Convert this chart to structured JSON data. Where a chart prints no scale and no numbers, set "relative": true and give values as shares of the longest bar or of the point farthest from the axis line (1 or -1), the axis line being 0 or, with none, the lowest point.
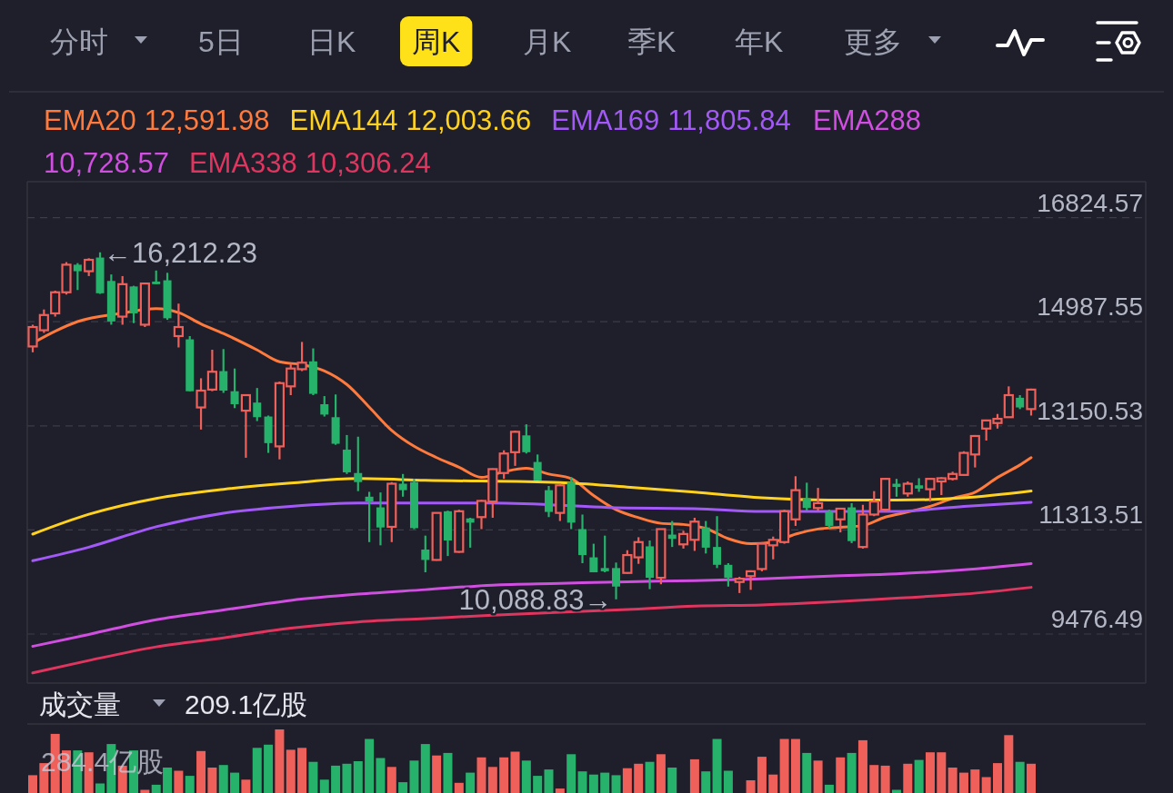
{
  "chart_data": [
    {
      "type": "other",
      "annotations": [
        "分时",
        "5日",
        "日K",
        "周K",
        "月K",
        "季K",
        "年K",
        "更多"
      ]
    },
    {
      "type": "candlestick",
      "categories": [
        null,
        null,
        null,
        null,
        null,
        null,
        null,
        null,
        null,
        null,
        null,
        null,
        null,
        null,
        null,
        null,
        null,
        null,
        null,
        null,
        null,
        null,
        null,
        null,
        null,
        null,
        null,
        null,
        null,
        null,
        null,
        null,
        null,
        null,
        null,
        null,
        null,
        null,
        null,
        null,
        null,
        null,
        null,
        null,
        null,
        null,
        null,
        null,
        null,
        null,
        null,
        null,
        null,
        null,
        null,
        null,
        null,
        null,
        null,
        null,
        null,
        null,
        null,
        null,
        null,
        null,
        null,
        null,
        null,
        null,
        null,
        null,
        null,
        null,
        null,
        null,
        null,
        null,
        null,
        null,
        null,
        null,
        null,
        null,
        null,
        null,
        null,
        null,
        null,
        null
      ],
      "ohlc": [
        [
          14551,
          14935,
          14448,
          14894
        ],
        [
          14837,
          15204,
          14791,
          15106
        ],
        [
          15135,
          15536,
          15078,
          15507
        ],
        [
          15507,
          16040,
          15467,
          15994
        ],
        [
          15994,
          16022,
          15547,
          15879
        ],
        [
          15879,
          16108,
          15793,
          16080
        ],
        [
          16120,
          16212.23,
          15479,
          15490
        ],
        [
          15707,
          15822,
          14935,
          14992
        ],
        [
          15078,
          15793,
          14935,
          15650
        ],
        [
          15610,
          15622,
          14963,
          15135
        ],
        [
          14935,
          15679,
          14894,
          15662
        ],
        [
          15696,
          15891,
          15650,
          15650
        ],
        [
          15719,
          15851,
          15021,
          15049
        ],
        [
          14734,
          15307,
          14534,
          14894
        ],
        [
          14677,
          14734,
          13761,
          13761
        ],
        [
          13475,
          13990,
          13085,
          13772
        ],
        [
          13790,
          14494,
          13761,
          14105
        ],
        [
          14116,
          14505,
          13732,
          13772
        ],
        [
          13761,
          14162,
          13463,
          13532
        ],
        [
          13418,
          13692,
          12587,
          13692
        ],
        [
          13561,
          13818,
          13234,
          13303
        ],
        [
          13315,
          13332,
          12673,
          12845
        ],
        [
          12788,
          13933,
          12559,
          13904
        ],
        [
          13847,
          14248,
          13692,
          14162
        ],
        [
          14150,
          14631,
          14116,
          14265
        ],
        [
          14288,
          14517,
          13692,
          13715
        ],
        [
          13532,
          13675,
          13315,
          13349
        ],
        [
          13303,
          13704,
          12816,
          12834
        ],
        [
          12730,
          12988,
          12301,
          12330
        ],
        [
          12318,
          12959,
          11998,
          12158
        ],
        [
          11900,
          11986,
          11099,
          11814
        ],
        [
          11712,
          11975,
          11042,
          11357
        ],
        [
          11368,
          12158,
          11099,
          12129
        ],
        [
          12129,
          12301,
          11900,
          12015
        ],
        [
          12158,
          12215,
          11328,
          11345
        ],
        [
          10967,
          11213,
          10566,
          10784
        ],
        [
          10784,
          11614,
          10772,
          11614
        ],
        [
          11643,
          11654,
          10853,
          11127
        ],
        [
          10927,
          11671,
          10910,
          11643
        ],
        [
          11517,
          11528,
          11001,
          11442
        ],
        [
          11540,
          11843,
          11328,
          11826
        ],
        [
          11814,
          12398,
          11528,
          12387
        ],
        [
          12318,
          12719,
          12215,
          12662
        ],
        [
          12685,
          13062,
          12444,
          13045
        ],
        [
          12982,
          13177,
          12662,
          12685
        ],
        [
          12513,
          12645,
          12187,
          12187
        ],
        [
          12015,
          12089,
          11540,
          11631
        ],
        [
          11614,
          12129,
          11471,
          12101
        ],
        [
          12158,
          12244,
          11328,
          11442
        ],
        [
          11328,
          11585,
          10727,
          10870
        ],
        [
          10830,
          11070,
          10566,
          10566
        ],
        [
          10641,
          11213,
          10566,
          10584
        ],
        [
          10641,
          10738,
          10088.83,
          10314
        ],
        [
          10555,
          10956,
          10544,
          10870
        ],
        [
          10830,
          11185,
          10715,
          11099
        ],
        [
          11024,
          11127,
          10269,
          10469
        ],
        [
          10469,
          11328,
          10355,
          11328
        ],
        [
          11231,
          11471,
          11013,
          11156
        ],
        [
          11059,
          11299,
          10984,
          11242
        ],
        [
          11139,
          11528,
          10944,
          11460
        ],
        [
          11357,
          11471,
          10898,
          11001
        ],
        [
          11013,
          11557,
          10641,
          10698
        ],
        [
          10698,
          10727,
          10314,
          10469
        ],
        [
          10395,
          10486,
          10200,
          10452
        ],
        [
          10498,
          10601,
          10257,
          10584
        ],
        [
          10624,
          11099,
          10584,
          11070
        ],
        [
          11042,
          11196,
          10795,
          11139
        ],
        [
          11099,
          11671,
          11070,
          11643
        ],
        [
          11500,
          12261,
          11385,
          12015
        ],
        [
          11872,
          12147,
          11654,
          11700
        ],
        [
          11700,
          12055,
          11654,
          11786
        ],
        [
          11643,
          11671,
          11345,
          11385
        ],
        [
          11500,
          11700,
          11270,
          11689
        ],
        [
          11712,
          11786,
          11081,
          11116
        ],
        [
          11013,
          11757,
          10984,
          11585
        ],
        [
          11585,
          11998,
          11557,
          11814
        ],
        [
          11671,
          12226,
          11643,
          12215
        ],
        [
          12129,
          12215,
          11900,
          12072
        ],
        [
          11957,
          12169,
          11900,
          12129
        ],
        [
          12101,
          12226,
          11986,
          12043
        ],
        [
          12032,
          12226,
          11814,
          12215
        ],
        [
          12169,
          12244,
          11929,
          12226
        ],
        [
          12215,
          12341,
          12187,
          12301
        ],
        [
          12284,
          12702,
          12273,
          12673
        ],
        [
          12645,
          12988,
          12416,
          12971
        ],
        [
          13102,
          13257,
          12891,
          13246
        ],
        [
          13200,
          13360,
          13102,
          13274
        ],
        [
          13303,
          13847,
          13303,
          13692
        ],
        [
          13646,
          13692,
          13446,
          13475
        ],
        [
          13446,
          13807,
          13332,
          13790
        ]
      ],
      "colors": [
        "#f0605a",
        "#f0605a",
        "#f0605a",
        "#f0605a",
        "#26b26b",
        "#f0605a",
        "#26b26b",
        "#26b26b",
        "#f0605a",
        "#26b26b",
        "#f0605a",
        "#26b26b",
        "#26b26b",
        "#f0605a",
        "#26b26b",
        "#f0605a",
        "#f0605a",
        "#26b26b",
        "#26b26b",
        "#f0605a",
        "#26b26b",
        "#26b26b",
        "#f0605a",
        "#f0605a",
        "#f0605a",
        "#26b26b",
        "#26b26b",
        "#26b26b",
        "#26b26b",
        "#26b26b",
        "#26b26b",
        "#26b26b",
        "#f0605a",
        "#26b26b",
        "#26b26b",
        "#26b26b",
        "#f0605a",
        "#26b26b",
        "#f0605a",
        "#26b26b",
        "#f0605a",
        "#f0605a",
        "#f0605a",
        "#f0605a",
        "#26b26b",
        "#26b26b",
        "#26b26b",
        "#f0605a",
        "#26b26b",
        "#26b26b",
        "#26b26b",
        "#26b26b",
        "#26b26b",
        "#f0605a",
        "#f0605a",
        "#26b26b",
        "#f0605a",
        "#26b26b",
        "#f0605a",
        "#f0605a",
        "#26b26b",
        "#26b26b",
        "#26b26b",
        "#f0605a",
        "#f0605a",
        "#f0605a",
        "#f0605a",
        "#f0605a",
        "#f0605a",
        "#26b26b",
        "#f0605a",
        "#26b26b",
        "#f0605a",
        "#26b26b",
        "#f0605a",
        "#f0605a",
        "#f0605a",
        "#26b26b",
        "#f0605a",
        "#26b26b",
        "#f0605a",
        "#f0605a",
        "#f0605a",
        "#f0605a",
        "#f0605a",
        "#f0605a",
        "#f0605a",
        "#f0605a",
        "#26b26b",
        "#f0605a"
      ],
      "series": [
        {
          "type": "line",
          "name": "EMA20 12,591.98",
          "color": "#ff7a3d",
          "values": [
            14610,
            null,
            14820,
            null,
            14990,
            null,
            null,
            null,
            15140,
            null,
            null,
            15220,
            null,
            15150,
            null,
            14950,
            null,
            14780,
            null,
            null,
            14490,
            null,
            14280,
            null,
            14230,
            null,
            14120,
            null,
            13880,
            null,
            13480,
            null,
            13070,
            null,
            12790,
            null,
            12590,
            null,
            12420,
            null,
            12240,
            null,
            12340,
            null,
            12400,
            null,
            12300,
            null,
            12220,
            null,
            11920,
            null,
            11670,
            null,
            11530,
            null,
            11430,
            null,
            11410,
            null,
            11340,
            null,
            11160,
            null,
            11070,
            null,
            11100,
            null,
            11240,
            null,
            11330,
            null,
            11360,
            null,
            11390,
            null,
            11540,
            null,
            11630,
            null,
            11730,
            null,
            11870,
            null,
            11980,
            null,
            12240,
            null,
            12460,
            12590
          ]
        },
        {
          "type": "line",
          "name": "EMA144 12,003.66",
          "color": "#ffd21f",
          "values": [
            11240,
            null,
            null,
            null,
            null,
            11590,
            null,
            null,
            null,
            null,
            null,
            11870,
            null,
            null,
            null,
            null,
            null,
            12030,
            null,
            null,
            null,
            null,
            null,
            12140,
            null,
            null,
            null,
            null,
            null,
            12220,
            null,
            null,
            null,
            null,
            null,
            12190,
            null,
            null,
            null,
            null,
            null,
            null,
            null,
            null,
            null,
            null,
            null,
            12150,
            null,
            null,
            null,
            null,
            null,
            12070,
            null,
            null,
            null,
            null,
            null,
            11980,
            null,
            null,
            null,
            null,
            null,
            11880,
            null,
            null,
            null,
            null,
            null,
            11840,
            null,
            null,
            null,
            null,
            null,
            11840,
            null,
            null,
            null,
            null,
            null,
            11880,
            null,
            null,
            null,
            null,
            null,
            12000
          ]
        },
        {
          "type": "line",
          "name": "EMA169 11,805.84",
          "color": "#a259f7",
          "values": [
            10770,
            null,
            null,
            null,
            null,
            11010,
            null,
            null,
            null,
            null,
            null,
            11370,
            null,
            null,
            null,
            null,
            null,
            11610,
            null,
            null,
            null,
            null,
            null,
            11730,
            null,
            null,
            null,
            null,
            null,
            11790,
            null,
            null,
            null,
            null,
            null,
            11790,
            null,
            null,
            null,
            null,
            null,
            11790,
            null,
            null,
            null,
            null,
            null,
            null,
            null,
            null,
            null,
            null,
            null,
            11700,
            null,
            null,
            null,
            null,
            null,
            11690,
            null,
            null,
            null,
            null,
            null,
            11640,
            null,
            null,
            null,
            null,
            null,
            null,
            null,
            null,
            null,
            null,
            null,
            11640,
            null,
            null,
            null,
            null,
            null,
            11730,
            null,
            null,
            null,
            null,
            null,
            11800
          ]
        },
        {
          "type": "line",
          "name": "EMA288 10,728.57",
          "color": "#d04ee0",
          "values": [
            9260,
            null,
            null,
            null,
            null,
            9470,
            null,
            null,
            null,
            null,
            null,
            9730,
            null,
            null,
            null,
            null,
            null,
            9900,
            null,
            null,
            null,
            null,
            null,
            10070,
            null,
            null,
            null,
            null,
            null,
            10180,
            null,
            null,
            null,
            null,
            null,
            10260,
            null,
            null,
            null,
            null,
            null,
            10340,
            null,
            null,
            null,
            null,
            null,
            10370,
            null,
            null,
            null,
            null,
            null,
            10400,
            null,
            null,
            null,
            null,
            null,
            10420,
            null,
            null,
            null,
            null,
            null,
            10450,
            null,
            null,
            null,
            null,
            null,
            10500,
            null,
            null,
            null,
            null,
            null,
            10540,
            null,
            null,
            null,
            null,
            null,
            10610,
            null,
            null,
            null,
            null,
            null,
            10720
          ]
        },
        {
          "type": "line",
          "name": "EMA338 10,306.24",
          "color": "#e0355f",
          "values": [
            8790,
            null,
            null,
            null,
            null,
            9010,
            null,
            null,
            null,
            null,
            null,
            9250,
            null,
            null,
            null,
            null,
            null,
            9410,
            null,
            null,
            null,
            null,
            null,
            9580,
            null,
            null,
            null,
            null,
            null,
            9690,
            null,
            null,
            null,
            null,
            null,
            9750,
            null,
            null,
            null,
            null,
            null,
            9810,
            null,
            null,
            null,
            null,
            null,
            9860,
            null,
            null,
            null,
            null,
            null,
            9910,
            null,
            null,
            null,
            null,
            null,
            9970,
            null,
            null,
            null,
            null,
            null,
            9990,
            null,
            null,
            null,
            null,
            null,
            10040,
            null,
            null,
            null,
            null,
            null,
            10110,
            null,
            null,
            null,
            null,
            null,
            10180,
            null,
            null,
            null,
            null,
            null,
            10300
          ]
        }
      ],
      "ylim": [
        8611,
        17459
      ],
      "yticks": [
        16824.57,
        14987.55,
        13150.53,
        11313.51,
        9476.49
      ],
      "grid": "y",
      "legend": "top",
      "annotations": [
        "←16,212.23",
        "10,088.83→"
      ]
    },
    {
      "type": "bar",
      "title": "成交量",
      "subtitle": "209.1亿股",
      "relative": true,
      "categories": [
        null,
        null,
        null,
        null,
        null,
        null,
        null,
        null,
        null,
        null,
        null,
        null,
        null,
        null,
        null,
        null,
        null,
        null,
        null,
        null,
        null,
        null,
        null,
        null,
        null,
        null,
        null,
        null,
        null,
        null,
        null,
        null,
        null,
        null,
        null,
        null,
        null,
        null,
        null,
        null,
        null,
        null,
        null,
        null,
        null,
        null,
        null,
        null,
        null,
        null,
        null,
        null,
        null,
        null,
        null,
        null,
        null,
        null,
        null,
        null,
        null,
        null,
        null,
        null,
        null,
        null,
        null,
        null,
        null,
        null,
        null,
        null,
        null,
        null,
        null,
        null,
        null,
        null,
        null,
        null,
        null,
        null,
        null,
        null,
        null,
        null,
        null,
        null,
        null,
        null
      ],
      "values": [
        0.28,
        0.47,
        0.93,
        0.67,
        0.67,
        0.64,
        0.15,
        0.77,
        0.43,
        0.67,
        0.05,
        0.13,
        0.4,
        0.35,
        0.27,
        0.66,
        0.4,
        0.44,
        0.32,
        0.21,
        0.71,
        0.76,
        1,
        0.68,
        0.71,
        0.49,
        0.21,
        0.43,
        0.46,
        0.5,
        0.85,
        0.55,
        0.41,
        0.17,
        0.51,
        0.77,
        0.59,
        0.63,
        0.16,
        0.32,
        0.56,
        0.41,
        0.56,
        0.65,
        0.51,
        0.27,
        0.37,
        0.07,
        0.61,
        0.34,
        0.29,
        0.32,
        0.28,
        0.39,
        0.46,
        0.49,
        0.61,
        0.4,
        0,
        0.53,
        0.34,
        0.85,
        0.35,
        0,
        0.2,
        0.57,
        0.29,
        0.85,
        0.85,
        0.63,
        0.51,
        0.13,
        0.56,
        0.63,
        0.83,
        0.44,
        0.43,
        0.05,
        0.46,
        0.52,
        0.64,
        0.64,
        0.4,
        0.32,
        0.37,
        0.25,
        0.47,
        0.91,
        0.49,
        0.46
      ],
      "colors": [
        "#f0605a",
        "#f0605a",
        "#f0605a",
        "#f0605a",
        "#26b26b",
        "#f0605a",
        "#26b26b",
        "#26b26b",
        "#f0605a",
        "#26b26b",
        "#f0605a",
        "#26b26b",
        "#26b26b",
        "#f0605a",
        "#26b26b",
        "#f0605a",
        "#f0605a",
        "#26b26b",
        "#26b26b",
        "#f0605a",
        "#26b26b",
        "#26b26b",
        "#f0605a",
        "#f0605a",
        "#f0605a",
        "#26b26b",
        "#26b26b",
        "#26b26b",
        "#26b26b",
        "#26b26b",
        "#26b26b",
        "#26b26b",
        "#f0605a",
        "#26b26b",
        "#26b26b",
        "#26b26b",
        "#f0605a",
        "#26b26b",
        "#f0605a",
        "#26b26b",
        "#f0605a",
        "#f0605a",
        "#f0605a",
        "#f0605a",
        "#26b26b",
        "#26b26b",
        "#26b26b",
        "#f0605a",
        "#26b26b",
        "#26b26b",
        "#26b26b",
        "#26b26b",
        "#26b26b",
        "#f0605a",
        "#f0605a",
        "#26b26b",
        "#f0605a",
        "#26b26b",
        "#f0605a",
        "#f0605a",
        "#26b26b",
        "#26b26b",
        "#26b26b",
        "#f0605a",
        "#f0605a",
        "#f0605a",
        "#f0605a",
        "#f0605a",
        "#f0605a",
        "#26b26b",
        "#f0605a",
        "#26b26b",
        "#f0605a",
        "#26b26b",
        "#f0605a",
        "#f0605a",
        "#f0605a",
        "#26b26b",
        "#f0605a",
        "#26b26b",
        "#f0605a",
        "#f0605a",
        "#f0605a",
        "#f0605a",
        "#f0605a",
        "#f0605a",
        "#f0605a",
        "#f0605a",
        "#26b26b",
        "#f0605a"
      ],
      "annotations": [
        "284.4亿股"
      ]
    }
  ]
}
